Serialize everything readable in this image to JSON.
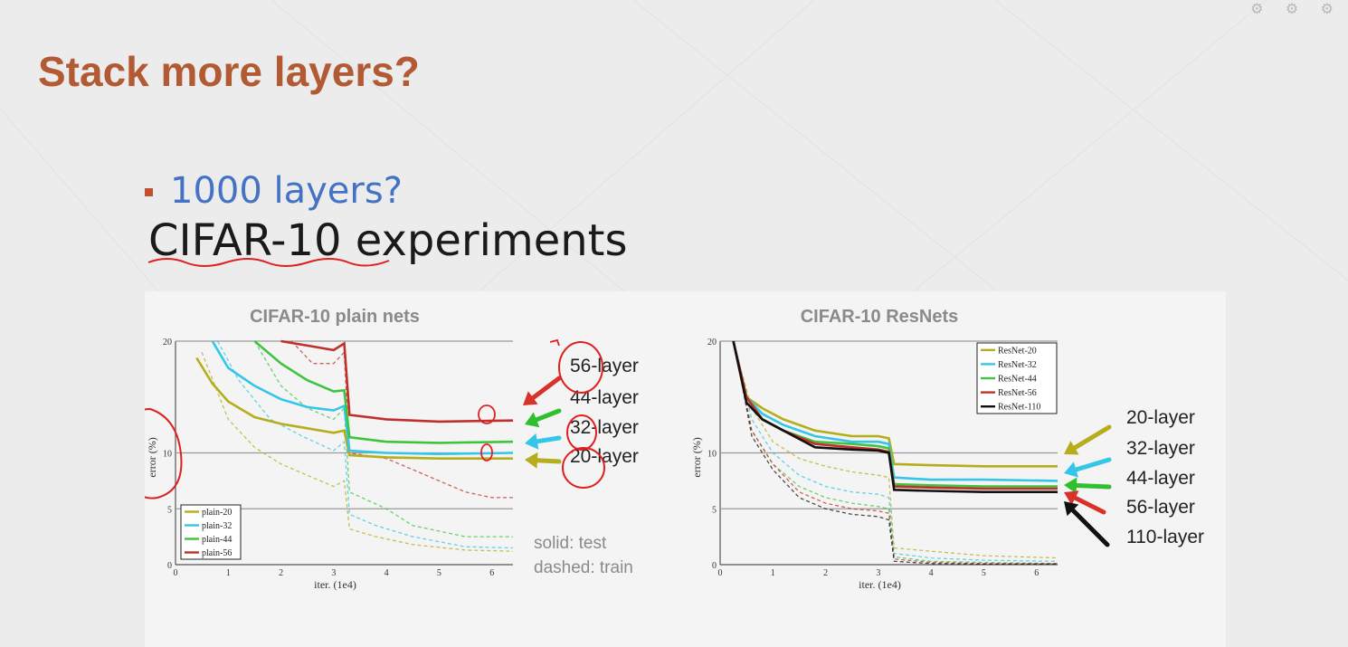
{
  "slide": {
    "title": "Stack more layers?",
    "bullet": "1000 layers?",
    "subtitle": "CIFAR-10 experiments",
    "system_icons": "⚙ ⚙ ⚙"
  },
  "colors": {
    "title": "#b25a33",
    "bullet_text": "#4472c4",
    "bullet_marker": "#c0502f",
    "annotation_red": "#e02020"
  },
  "chart_data": [
    {
      "type": "line",
      "title": "CIFAR-10 plain nets",
      "xlabel": "iter. (1e4)",
      "ylabel": "error (%)",
      "xlim": [
        0,
        6.4
      ],
      "ylim": [
        0,
        20
      ],
      "x_ticks": [
        "0",
        "1",
        "2",
        "3",
        "4",
        "5",
        "6"
      ],
      "y_ticks": [
        "0",
        "5",
        "10",
        "20"
      ],
      "grid": "horizontal at 5, 10 and 20",
      "legend_position": "bottom-left",
      "legend": [
        "plain-20",
        "plain-32",
        "plain-44",
        "plain-56"
      ],
      "note": [
        "solid: test",
        "dashed: train"
      ],
      "arrow_labels": [
        "56-layer",
        "44-layer",
        "32-layer",
        "20-layer"
      ],
      "series": [
        {
          "name": "plain-20",
          "color": "#b5ad1c",
          "test": [
            [
              0.4,
              18.5
            ],
            [
              0.7,
              16.2
            ],
            [
              1.0,
              14.6
            ],
            [
              1.5,
              13.2
            ],
            [
              2.0,
              12.6
            ],
            [
              2.5,
              12.2
            ],
            [
              3.0,
              11.8
            ],
            [
              3.2,
              12.0
            ],
            [
              3.3,
              9.8
            ],
            [
              4.0,
              9.6
            ],
            [
              5.0,
              9.5
            ],
            [
              6.4,
              9.5
            ]
          ],
          "train": [
            [
              0.5,
              19
            ],
            [
              1.0,
              13
            ],
            [
              1.5,
              10.5
            ],
            [
              2.0,
              9
            ],
            [
              2.5,
              8
            ],
            [
              3.0,
              7
            ],
            [
              3.2,
              7.5
            ],
            [
              3.3,
              3.2
            ],
            [
              3.8,
              2.5
            ],
            [
              4.5,
              1.8
            ],
            [
              5.5,
              1.3
            ],
            [
              6.4,
              1.2
            ]
          ]
        },
        {
          "name": "plain-32",
          "color": "#33c6e8",
          "test": [
            [
              0.7,
              20
            ],
            [
              1.0,
              17.6
            ],
            [
              1.5,
              16
            ],
            [
              2.0,
              14.8
            ],
            [
              2.5,
              14.1
            ],
            [
              3.0,
              13.8
            ],
            [
              3.2,
              14.2
            ],
            [
              3.3,
              10.2
            ],
            [
              4.0,
              10.0
            ],
            [
              5.0,
              9.9
            ],
            [
              6.4,
              10.0
            ]
          ],
          "train": [
            [
              0.8,
              20
            ],
            [
              1.2,
              16.5
            ],
            [
              1.8,
              13
            ],
            [
              2.4,
              11.5
            ],
            [
              3.0,
              10.2
            ],
            [
              3.2,
              11
            ],
            [
              3.3,
              4.5
            ],
            [
              3.8,
              3.5
            ],
            [
              4.5,
              2.5
            ],
            [
              5.5,
              1.6
            ],
            [
              6.4,
              1.5
            ]
          ]
        },
        {
          "name": "plain-44",
          "color": "#3fc43f",
          "test": [
            [
              1.5,
              20
            ],
            [
              2.0,
              18
            ],
            [
              2.5,
              16.5
            ],
            [
              3.0,
              15.5
            ],
            [
              3.2,
              15.6
            ],
            [
              3.3,
              11.4
            ],
            [
              4.0,
              11.0
            ],
            [
              5.0,
              10.9
            ],
            [
              6.4,
              11.0
            ]
          ],
          "train": [
            [
              1.5,
              20
            ],
            [
              2.0,
              16
            ],
            [
              2.5,
              14
            ],
            [
              3.0,
              13
            ],
            [
              3.2,
              14
            ],
            [
              3.3,
              6.5
            ],
            [
              4.0,
              5
            ],
            [
              4.5,
              3.5
            ],
            [
              5.5,
              2.5
            ],
            [
              6.4,
              2.5
            ]
          ]
        },
        {
          "name": "plain-56",
          "color": "#c0302a",
          "test": [
            [
              2.0,
              20
            ],
            [
              2.5,
              19.6
            ],
            [
              3.0,
              19.2
            ],
            [
              3.2,
              19.8
            ],
            [
              3.3,
              13.4
            ],
            [
              4.0,
              13.0
            ],
            [
              5.0,
              12.8
            ],
            [
              6.4,
              12.9
            ]
          ],
          "train": [
            [
              2.2,
              20
            ],
            [
              2.6,
              18
            ],
            [
              3.0,
              18
            ],
            [
              3.2,
              19
            ],
            [
              3.3,
              10
            ],
            [
              4.0,
              9.5
            ],
            [
              4.5,
              8.5
            ],
            [
              5.0,
              7.5
            ],
            [
              5.5,
              6.5
            ],
            [
              6.0,
              6
            ],
            [
              6.4,
              6
            ]
          ]
        }
      ]
    },
    {
      "type": "line",
      "title": "CIFAR-10 ResNets",
      "xlabel": "iter. (1e4)",
      "ylabel": "error (%)",
      "xlim": [
        0,
        6.4
      ],
      "ylim": [
        0,
        20
      ],
      "x_ticks": [
        "0",
        "1",
        "2",
        "3",
        "4",
        "5",
        "6"
      ],
      "y_ticks": [
        "0",
        "5",
        "10",
        "20"
      ],
      "grid": "horizontal at 5, 10 and 20",
      "legend_position": "top-right",
      "legend": [
        "ResNet-20",
        "ResNet-32",
        "ResNet-44",
        "ResNet-56",
        "ResNet-110"
      ],
      "arrow_labels": [
        "20-layer",
        "32-layer",
        "44-layer",
        "56-layer",
        "110-layer"
      ],
      "series": [
        {
          "name": "ResNet-20",
          "color": "#b5ad1c",
          "test": [
            [
              0.25,
              20
            ],
            [
              0.5,
              15
            ],
            [
              0.8,
              14
            ],
            [
              1.2,
              13
            ],
            [
              1.8,
              12
            ],
            [
              2.5,
              11.5
            ],
            [
              3.0,
              11.5
            ],
            [
              3.2,
              11.3
            ],
            [
              3.3,
              9
            ],
            [
              4.0,
              8.9
            ],
            [
              5.0,
              8.8
            ],
            [
              6.4,
              8.8
            ]
          ],
          "train": [
            [
              0.3,
              19
            ],
            [
              0.6,
              14
            ],
            [
              1.0,
              11
            ],
            [
              1.5,
              9.5
            ],
            [
              2.0,
              8.8
            ],
            [
              2.5,
              8.3
            ],
            [
              3.0,
              8.0
            ],
            [
              3.2,
              7.8
            ],
            [
              3.3,
              1.5
            ],
            [
              4.0,
              1.2
            ],
            [
              5.0,
              0.8
            ],
            [
              6.4,
              0.6
            ]
          ]
        },
        {
          "name": "ResNet-32",
          "color": "#33c6e8",
          "test": [
            [
              0.25,
              20
            ],
            [
              0.5,
              15
            ],
            [
              0.8,
              13.5
            ],
            [
              1.2,
              12.5
            ],
            [
              1.8,
              11.5
            ],
            [
              2.5,
              11
            ],
            [
              3.0,
              11
            ],
            [
              3.2,
              10.8
            ],
            [
              3.3,
              7.8
            ],
            [
              4.0,
              7.6
            ],
            [
              5.0,
              7.6
            ],
            [
              6.4,
              7.5
            ]
          ],
          "train": [
            [
              0.3,
              19
            ],
            [
              0.6,
              13
            ],
            [
              1.0,
              10
            ],
            [
              1.5,
              8
            ],
            [
              2.0,
              7
            ],
            [
              2.5,
              6.5
            ],
            [
              3.0,
              6.3
            ],
            [
              3.2,
              6
            ],
            [
              3.3,
              1
            ],
            [
              4.0,
              0.6
            ],
            [
              5.0,
              0.4
            ],
            [
              6.4,
              0.3
            ]
          ]
        },
        {
          "name": "ResNet-44",
          "color": "#3fc43f",
          "test": [
            [
              0.25,
              20
            ],
            [
              0.5,
              15
            ],
            [
              0.8,
              13
            ],
            [
              1.2,
              12
            ],
            [
              1.8,
              11
            ],
            [
              2.5,
              10.8
            ],
            [
              3.0,
              10.6
            ],
            [
              3.2,
              10.4
            ],
            [
              3.3,
              7.2
            ],
            [
              4.0,
              7.1
            ],
            [
              5.0,
              7.0
            ],
            [
              6.4,
              7.0
            ]
          ],
          "train": [
            [
              0.3,
              19
            ],
            [
              0.6,
              12
            ],
            [
              1.0,
              9
            ],
            [
              1.5,
              7
            ],
            [
              2.0,
              6
            ],
            [
              2.5,
              5.5
            ],
            [
              3.0,
              5.2
            ],
            [
              3.2,
              5
            ],
            [
              3.3,
              0.7
            ],
            [
              4.0,
              0.3
            ],
            [
              5.0,
              0.2
            ],
            [
              6.4,
              0.1
            ]
          ]
        },
        {
          "name": "ResNet-56",
          "color": "#c0302a",
          "test": [
            [
              0.25,
              20
            ],
            [
              0.5,
              15
            ],
            [
              0.8,
              13
            ],
            [
              1.2,
              12
            ],
            [
              1.8,
              10.8
            ],
            [
              2.5,
              10.5
            ],
            [
              3.0,
              10.3
            ],
            [
              3.2,
              10.1
            ],
            [
              3.3,
              7.0
            ],
            [
              4.0,
              6.9
            ],
            [
              5.0,
              6.8
            ],
            [
              6.4,
              6.8
            ]
          ],
          "train": [
            [
              0.3,
              19
            ],
            [
              0.6,
              12
            ],
            [
              1.0,
              9
            ],
            [
              1.5,
              6.5
            ],
            [
              2.0,
              5.5
            ],
            [
              2.5,
              5
            ],
            [
              3.0,
              4.8
            ],
            [
              3.2,
              4.6
            ],
            [
              3.3,
              0.5
            ],
            [
              4.0,
              0.2
            ],
            [
              5.0,
              0.1
            ],
            [
              6.4,
              0.1
            ]
          ]
        },
        {
          "name": "ResNet-110",
          "color": "#111111",
          "test": [
            [
              0.25,
              20
            ],
            [
              0.5,
              14.5
            ],
            [
              0.8,
              13
            ],
            [
              1.2,
              12
            ],
            [
              1.8,
              10.5
            ],
            [
              2.5,
              10.3
            ],
            [
              3.0,
              10.2
            ],
            [
              3.2,
              10
            ],
            [
              3.3,
              6.7
            ],
            [
              4.0,
              6.6
            ],
            [
              5.0,
              6.5
            ],
            [
              6.4,
              6.5
            ]
          ],
          "train": [
            [
              0.3,
              19
            ],
            [
              0.6,
              11.5
            ],
            [
              1.0,
              8.5
            ],
            [
              1.5,
              6
            ],
            [
              2.0,
              5
            ],
            [
              2.5,
              4.5
            ],
            [
              3.0,
              4.3
            ],
            [
              3.2,
              4
            ],
            [
              3.3,
              0.3
            ],
            [
              4.0,
              0.1
            ],
            [
              5.0,
              0.05
            ],
            [
              6.4,
              0.05
            ]
          ]
        }
      ]
    }
  ]
}
